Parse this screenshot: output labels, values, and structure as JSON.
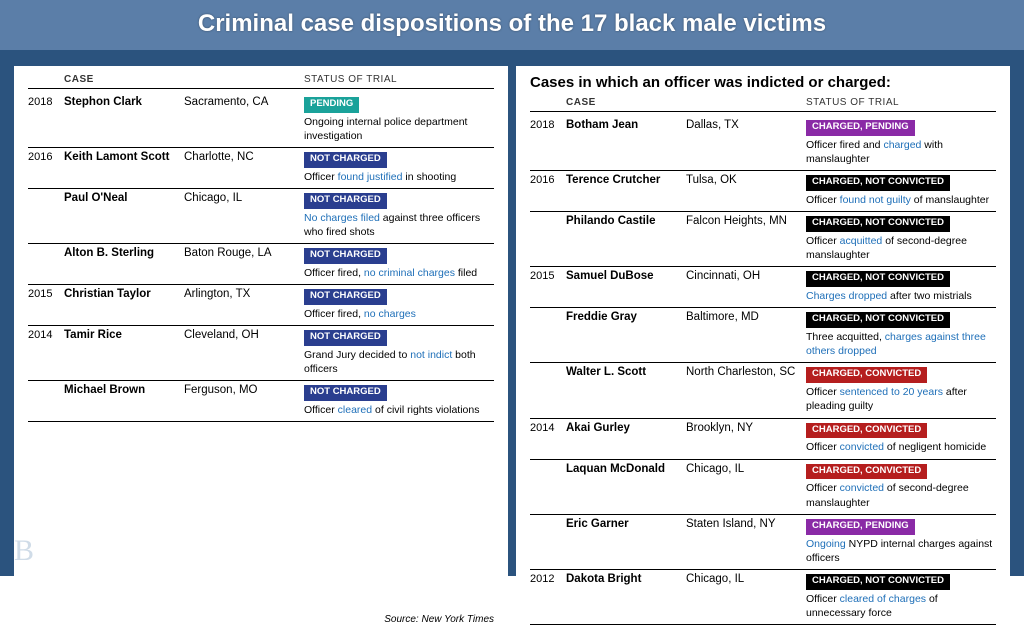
{
  "title": "Criminal case dispositions of the 17 black male victims",
  "headers": {
    "case": "CASE",
    "status": "STATUS OF TRIAL"
  },
  "source_label": "Source: New York Times",
  "logo_letter": "B",
  "colors": {
    "page_bg": "#2b537e",
    "title_bar_bg": "#5b7ea8",
    "panel_bg": "#ffffff",
    "highlight_text": "#1e6fb8",
    "badges": {
      "pending": "#1aa29a",
      "not_charged": "#2a3e8f",
      "charged_pending": "#8a2aa6",
      "charged_not_convicted": "#000000",
      "charged_convicted": "#b51e1e"
    }
  },
  "left_panel": {
    "rows": [
      {
        "year": "2018",
        "name": "Stephon Clark",
        "loc": "Sacramento, CA",
        "badge": "PENDING",
        "badge_key": "pending",
        "note_pre": "Ongoing ",
        "note_hl": "",
        "note_post": "internal police department investigation"
      },
      {
        "year": "2016",
        "name": "Keith Lamont Scott",
        "loc": "Charlotte, NC",
        "badge": "NOT CHARGED",
        "badge_key": "not_charged",
        "note_pre": "Officer ",
        "note_hl": "found justified",
        "note_post": " in shooting"
      },
      {
        "year": "",
        "name": "Paul O'Neal",
        "loc": "Chicago, IL",
        "badge": "NOT CHARGED",
        "badge_key": "not_charged",
        "note_pre": "",
        "note_hl": "No charges filed",
        "note_post": " against three officers who fired shots"
      },
      {
        "year": "",
        "name": "Alton B. Sterling",
        "loc": "Baton Rouge, LA",
        "badge": "NOT CHARGED",
        "badge_key": "not_charged",
        "note_pre": "Officer fired, ",
        "note_hl": "no criminal charges",
        "note_post": " filed"
      },
      {
        "year": "2015",
        "name": "Christian Taylor",
        "loc": "Arlington, TX",
        "badge": "NOT CHARGED",
        "badge_key": "not_charged",
        "note_pre": "Officer fired, ",
        "note_hl": "no charges",
        "note_post": ""
      },
      {
        "year": "2014",
        "name": "Tamir Rice",
        "loc": "Cleveland, OH",
        "badge": "NOT CHARGED",
        "badge_key": "not_charged",
        "note_pre": "Grand Jury decided to ",
        "note_hl": "not indict",
        "note_post": " both officers"
      },
      {
        "year": "",
        "name": "Michael Brown",
        "loc": "Ferguson, MO",
        "badge": "NOT CHARGED",
        "badge_key": "not_charged",
        "note_pre": "Officer ",
        "note_hl": "cleared",
        "note_post": " of civil rights violations"
      }
    ]
  },
  "right_panel": {
    "subtitle": "Cases in which an officer was indicted or charged:",
    "rows": [
      {
        "year": "2018",
        "name": "Botham Jean",
        "loc": "Dallas, TX",
        "badge": "CHARGED, PENDING",
        "badge_key": "charged_pending",
        "note_pre": "Officer fired and ",
        "note_hl": "charged",
        "note_post": " with manslaughter"
      },
      {
        "year": "2016",
        "name": "Terence Crutcher",
        "loc": "Tulsa, OK",
        "badge": "CHARGED, NOT CONVICTED",
        "badge_key": "charged_not_convicted",
        "note_pre": "Officer ",
        "note_hl": "found not guilty",
        "note_post": " of manslaughter"
      },
      {
        "year": "",
        "name": "Philando Castile",
        "loc": "Falcon Heights, MN",
        "badge": "CHARGED, NOT CONVICTED",
        "badge_key": "charged_not_convicted",
        "note_pre": "Officer ",
        "note_hl": "acquitted",
        "note_post": " of second-degree manslaughter"
      },
      {
        "year": "2015",
        "name": "Samuel DuBose",
        "loc": "Cincinnati, OH",
        "badge": "CHARGED, NOT CONVICTED",
        "badge_key": "charged_not_convicted",
        "note_pre": "",
        "note_hl": "Charges dropped",
        "note_post": " after two mistrials"
      },
      {
        "year": "",
        "name": "Freddie Gray",
        "loc": "Baltimore, MD",
        "badge": "CHARGED, NOT CONVICTED",
        "badge_key": "charged_not_convicted",
        "note_pre": "Three acquitted, ",
        "note_hl": "charges against three others dropped",
        "note_post": ""
      },
      {
        "year": "",
        "name": "Walter L. Scott",
        "loc": "North Charleston, SC",
        "badge": "CHARGED, CONVICTED",
        "badge_key": "charged_convicted",
        "note_pre": "Officer ",
        "note_hl": "sentenced to 20 years",
        "note_post": " after pleading guilty"
      },
      {
        "year": "2014",
        "name": "Akai Gurley",
        "loc": "Brooklyn, NY",
        "badge": "CHARGED, CONVICTED",
        "badge_key": "charged_convicted",
        "note_pre": "Officer ",
        "note_hl": "convicted",
        "note_post": " of negligent homicide"
      },
      {
        "year": "",
        "name": "Laquan McDonald",
        "loc": "Chicago, IL",
        "badge": "CHARGED, CONVICTED",
        "badge_key": "charged_convicted",
        "note_pre": "Officer ",
        "note_hl": "convicted",
        "note_post": " of second-degree manslaughter"
      },
      {
        "year": "",
        "name": "Eric Garner",
        "loc": "Staten Island, NY",
        "badge": "CHARGED, PENDING",
        "badge_key": "charged_pending",
        "note_pre": "",
        "note_hl": "Ongoing",
        "note_post": " NYPD internal charges against officers",
        "extra_hl": " internal charges "
      },
      {
        "year": "2012",
        "name": "Dakota Bright",
        "loc": "Chicago, IL",
        "badge": "CHARGED, NOT CONVICTED",
        "badge_key": "charged_not_convicted",
        "note_pre": "Officer ",
        "note_hl": "cleared of charges",
        "note_post": " of unnecessary force"
      }
    ]
  }
}
